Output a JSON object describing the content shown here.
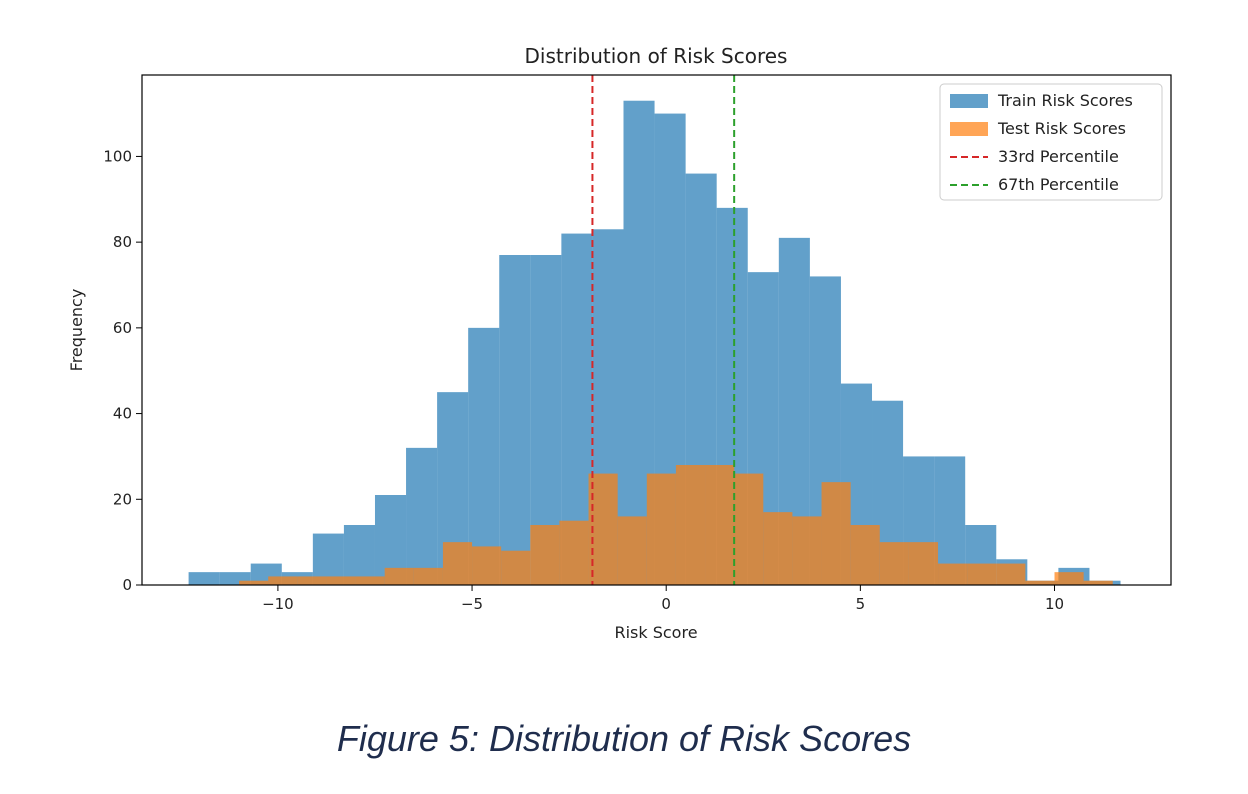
{
  "figure": {
    "caption": "Figure 5: Distribution of Risk Scores"
  },
  "chart_data": {
    "type": "histogram",
    "title": "Distribution of Risk Scores",
    "xlabel": "Risk Score",
    "ylabel": "Frequency",
    "xlim": [
      -13.5,
      13.0
    ],
    "ylim": [
      0,
      119
    ],
    "xticks": [
      -10,
      -5,
      0,
      5,
      10
    ],
    "xtick_labels": [
      "−10",
      "−5",
      "0",
      "5",
      "10"
    ],
    "yticks": [
      0,
      20,
      40,
      60,
      80,
      100
    ],
    "grid": false,
    "legend_placement": "top-right",
    "series": [
      {
        "name": "Train Risk Scores",
        "color": "#1f77b4",
        "alpha": 0.7,
        "bin_edges": [
          -12.3,
          -11.5,
          -10.7,
          -9.9,
          -9.1,
          -8.3,
          -7.5,
          -6.7,
          -5.9,
          -5.1,
          -4.3,
          -3.5,
          -2.7,
          -1.9,
          -1.1,
          -0.3,
          0.5,
          1.3,
          2.1,
          2.9,
          3.7,
          4.5,
          5.3,
          6.1,
          6.9,
          7.7,
          8.5,
          9.3,
          10.1,
          10.9,
          11.7
        ],
        "counts": [
          3,
          3,
          5,
          3,
          12,
          14,
          21,
          32,
          45,
          60,
          77,
          77,
          82,
          83,
          113,
          110,
          96,
          88,
          73,
          81,
          72,
          47,
          43,
          30,
          30,
          14,
          6,
          1,
          4,
          1
        ]
      },
      {
        "name": "Test Risk Scores",
        "color": "#ff7f0e",
        "alpha": 0.7,
        "bin_edges": [
          -11.0,
          -10.25,
          -9.5,
          -8.75,
          -8.0,
          -7.25,
          -6.5,
          -5.75,
          -5.0,
          -4.25,
          -3.5,
          -2.75,
          -2.0,
          -1.25,
          -0.5,
          0.25,
          1.0,
          1.75,
          2.5,
          3.25,
          4.0,
          4.75,
          5.5,
          6.25,
          7.0,
          7.75,
          8.5,
          9.25,
          10.0,
          10.75,
          11.5
        ],
        "counts": [
          1,
          2,
          2,
          2,
          2,
          4,
          4,
          10,
          9,
          8,
          14,
          15,
          26,
          16,
          26,
          28,
          28,
          26,
          17,
          16,
          24,
          14,
          10,
          10,
          5,
          5,
          5,
          1,
          3,
          1
        ]
      }
    ],
    "reference_lines": [
      {
        "name": "33rd Percentile",
        "x": -1.9,
        "color": "#d62728",
        "style": "dashed"
      },
      {
        "name": "67th Percentile",
        "x": 1.75,
        "color": "#2ca02c",
        "style": "dashed"
      }
    ]
  }
}
